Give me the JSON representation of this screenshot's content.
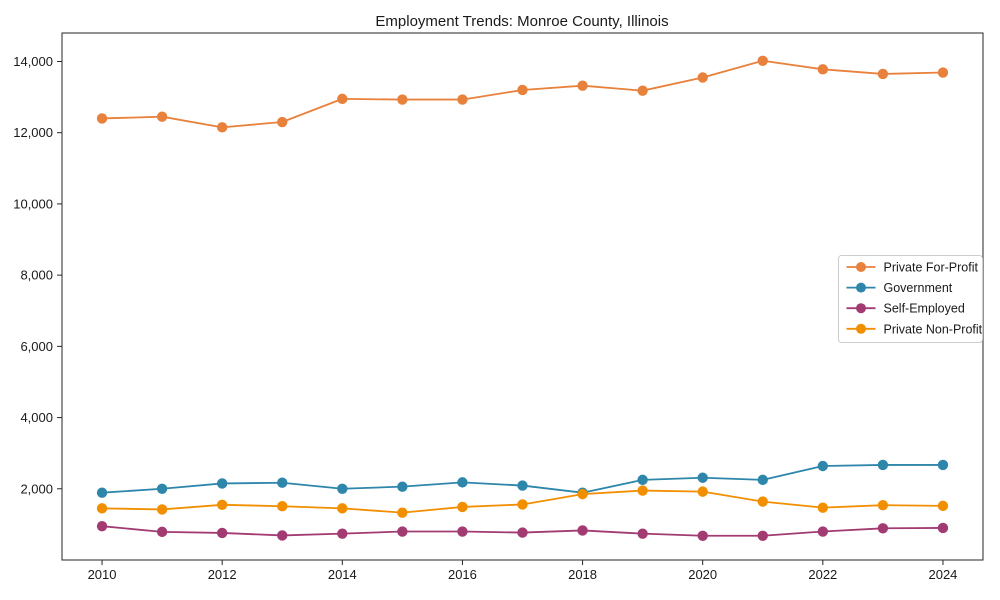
{
  "chart_data": {
    "type": "line",
    "title": "Employment Trends: Monroe County, Illinois",
    "xlabel": "",
    "ylabel": "",
    "x": [
      2010,
      2011,
      2012,
      2013,
      2014,
      2015,
      2016,
      2017,
      2018,
      2019,
      2020,
      2021,
      2022,
      2023,
      2024
    ],
    "series": [
      {
        "name": "Private For-Profit",
        "color": "#E8813C",
        "values": [
          12400,
          12450,
          12150,
          12300,
          12950,
          12930,
          12930,
          13200,
          13320,
          13180,
          13550,
          14020,
          13780,
          13650,
          13690
        ]
      },
      {
        "name": "Government",
        "color": "#2E86AB",
        "values": [
          1890,
          2000,
          2150,
          2170,
          2000,
          2060,
          2180,
          2090,
          1890,
          2250,
          2310,
          2250,
          2640,
          2670,
          2670
        ]
      },
      {
        "name": "Self-Employed",
        "color": "#A23B72",
        "values": [
          950,
          790,
          760,
          690,
          740,
          800,
          800,
          770,
          830,
          740,
          680,
          680,
          800,
          890,
          900
        ]
      },
      {
        "name": "Private Non-Profit",
        "color": "#F18F01",
        "values": [
          1450,
          1420,
          1550,
          1510,
          1450,
          1330,
          1490,
          1560,
          1850,
          1950,
          1920,
          1640,
          1470,
          1540,
          1520
        ]
      }
    ],
    "xticks": [
      2010,
      2012,
      2014,
      2016,
      2018,
      2020,
      2022,
      2024
    ],
    "yticks": [
      2000,
      4000,
      6000,
      8000,
      10000,
      12000,
      14000
    ],
    "ytick_labels": [
      "2,000",
      "4,000",
      "6,000",
      "8,000",
      "10,000",
      "12,000",
      "14,000"
    ],
    "xlim": [
      2009.3333,
      2024.6667
    ],
    "ylim": [
      0,
      14800
    ],
    "grid": false,
    "legend_position": "right",
    "legend_border_color": "#cccccc",
    "axis_color": "#262626",
    "text_color": "#1a1a1a",
    "background_color": "#ffffff"
  }
}
